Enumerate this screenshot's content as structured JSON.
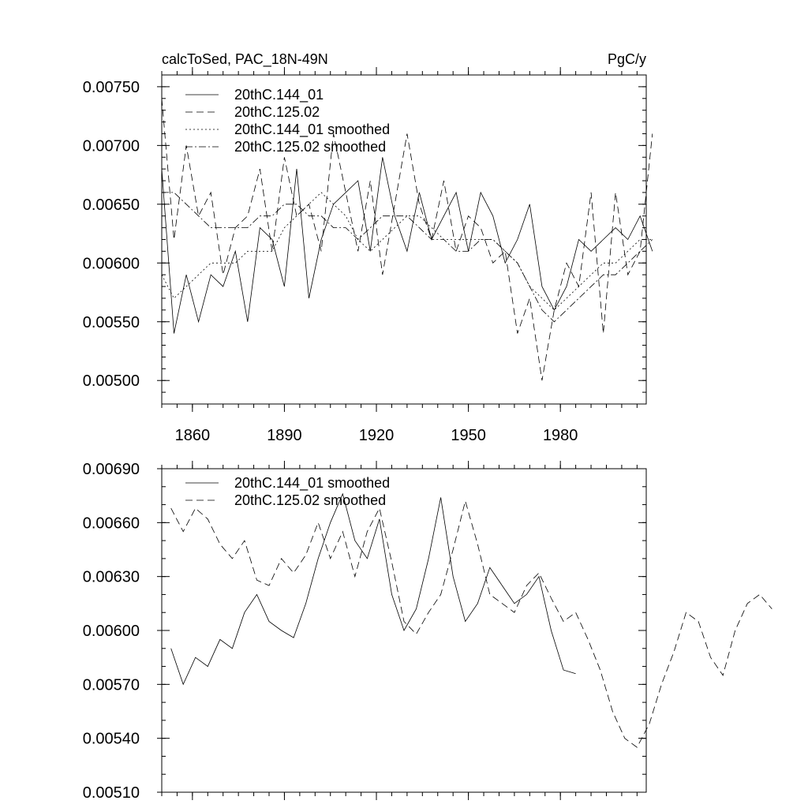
{
  "chart_data": [
    {
      "type": "line",
      "title_left": "calcToSed, PAC_18N-49N",
      "title_right": "PgC/y",
      "xlim": [
        1850,
        2008
      ],
      "ylim": [
        0.0048,
        0.0076
      ],
      "x_ticks": [
        1860,
        1890,
        1920,
        1950,
        1980
      ],
      "x_tick_labels": [
        "1860",
        "1890",
        "1920",
        "1950",
        "1980"
      ],
      "y_ticks": [
        0.005,
        0.0055,
        0.006,
        0.0065,
        0.007,
        0.0075
      ],
      "y_tick_labels": [
        "0.00500",
        "0.00550",
        "0.00600",
        "0.00650",
        "0.00700",
        "0.00750"
      ],
      "legend": [
        {
          "label": "20thC.144_01",
          "dash": "solid"
        },
        {
          "label": "20thC.125.02",
          "dash": "dashed"
        },
        {
          "label": "20thC.144_01 smoothed",
          "dash": "dotted"
        },
        {
          "label": "20thC.125.02 smoothed",
          "dash": "dashdot"
        }
      ],
      "series": [
        {
          "name": "20thC.144_01",
          "x_start": 1850,
          "x_step": 4,
          "values": [
            0.0068,
            0.0054,
            0.0059,
            0.0055,
            0.0059,
            0.0058,
            0.0061,
            0.0055,
            0.0063,
            0.0062,
            0.0058,
            0.0068,
            0.0057,
            0.0062,
            0.0065,
            0.0066,
            0.0067,
            0.0061,
            0.0069,
            0.0064,
            0.0061,
            0.0066,
            0.0062,
            0.0064,
            0.0066,
            0.0061,
            0.0066,
            0.0064,
            0.006,
            0.0062,
            0.0065,
            0.0058,
            0.0056,
            0.0058,
            0.0062,
            0.0061,
            0.0062,
            0.0063,
            0.0062,
            0.0064,
            0.0061
          ]
        },
        {
          "name": "20thC.125.02",
          "x_start": 1850,
          "x_step": 4,
          "values": [
            0.0074,
            0.0062,
            0.007,
            0.0064,
            0.0066,
            0.0059,
            0.0063,
            0.0064,
            0.0068,
            0.0061,
            0.0069,
            0.0064,
            0.0065,
            0.0061,
            0.0071,
            0.0066,
            0.0061,
            0.0067,
            0.0059,
            0.0065,
            0.0071,
            0.0065,
            0.0062,
            0.0067,
            0.0061,
            0.0064,
            0.0063,
            0.006,
            0.0061,
            0.0054,
            0.0057,
            0.005,
            0.0056,
            0.006,
            0.0058,
            0.0066,
            0.0054,
            0.0066,
            0.0059,
            0.0061,
            0.0071
          ]
        },
        {
          "name": "20thC.144_01 smoothed",
          "x_start": 1850,
          "x_step": 4,
          "values": [
            0.0059,
            0.0057,
            0.0058,
            0.0059,
            0.006,
            0.006,
            0.006,
            0.0061,
            0.0061,
            0.0061,
            0.0063,
            0.0064,
            0.0065,
            0.0066,
            0.0065,
            0.0064,
            0.0062,
            0.0061,
            0.0062,
            0.0063,
            0.0064,
            0.0064,
            0.0063,
            0.0062,
            0.0062,
            0.0062,
            0.0062,
            0.0062,
            0.0061,
            0.006,
            0.0058,
            0.0057,
            0.0056,
            0.0057,
            0.0058,
            0.0059,
            0.006,
            0.006,
            0.0061,
            0.0062,
            0.0062
          ]
        },
        {
          "name": "20thC.125.02 smoothed",
          "x_start": 1850,
          "x_step": 4,
          "values": [
            0.0066,
            0.0066,
            0.0065,
            0.0064,
            0.0063,
            0.0063,
            0.0063,
            0.0063,
            0.0064,
            0.0064,
            0.0065,
            0.0065,
            0.0064,
            0.0064,
            0.0063,
            0.0063,
            0.0062,
            0.0063,
            0.0064,
            0.0064,
            0.0064,
            0.0063,
            0.0062,
            0.0062,
            0.0061,
            0.0061,
            0.0062,
            0.0062,
            0.0061,
            0.006,
            0.0058,
            0.0056,
            0.0055,
            0.0056,
            0.0057,
            0.0058,
            0.0059,
            0.0059,
            0.006,
            0.0061,
            0.0062
          ]
        }
      ]
    },
    {
      "type": "line",
      "xlim": [
        1850,
        2008
      ],
      "ylim": [
        0.0051,
        0.0069
      ],
      "x_ticks": [
        1860,
        1890,
        1920,
        1950,
        1980
      ],
      "y_ticks": [
        0.0051,
        0.0054,
        0.0057,
        0.006,
        0.0063,
        0.0066,
        0.0069
      ],
      "y_tick_labels": [
        "0.00510",
        "0.00540",
        "0.00570",
        "0.00600",
        "0.00630",
        "0.00660",
        "0.00690"
      ],
      "legend": [
        {
          "label": "20thC.144_01 smoothed",
          "dash": "solid"
        },
        {
          "label": "20thC.125.02 smoothed",
          "dash": "dashed"
        }
      ],
      "series": [
        {
          "name": "20thC.144_01 smoothed",
          "x_start": 1853,
          "x_step": 4,
          "values": [
            0.0059,
            0.0057,
            0.00585,
            0.0058,
            0.00595,
            0.0059,
            0.0061,
            0.0062,
            0.00605,
            0.006,
            0.00596,
            0.00615,
            0.0064,
            0.0066,
            0.00676,
            0.0065,
            0.0064,
            0.00662,
            0.0062,
            0.006,
            0.00612,
            0.0064,
            0.00674,
            0.0063,
            0.00605,
            0.00615,
            0.00635,
            0.00625,
            0.00615,
            0.0062,
            0.0063,
            0.006,
            0.00578,
            0.00576
          ]
        },
        {
          "name": "20thC.125.02 smoothed",
          "x_start": 1853,
          "x_step": 4,
          "values": [
            0.00668,
            0.00655,
            0.00668,
            0.00662,
            0.00648,
            0.0064,
            0.0065,
            0.00628,
            0.00625,
            0.0064,
            0.00632,
            0.00642,
            0.0066,
            0.0064,
            0.00655,
            0.0063,
            0.00655,
            0.00668,
            0.00638,
            0.00605,
            0.00598,
            0.0061,
            0.0062,
            0.00645,
            0.00672,
            0.00648,
            0.0062,
            0.00615,
            0.0061,
            0.00625,
            0.00632,
            0.00618,
            0.00605,
            0.0061,
            0.00595,
            0.00578,
            0.00555,
            0.0054,
            0.00535,
            0.00548,
            0.0057,
            0.00588,
            0.0061,
            0.00605,
            0.00585,
            0.00575,
            0.006,
            0.00615,
            0.0062,
            0.00612
          ]
        }
      ]
    }
  ]
}
